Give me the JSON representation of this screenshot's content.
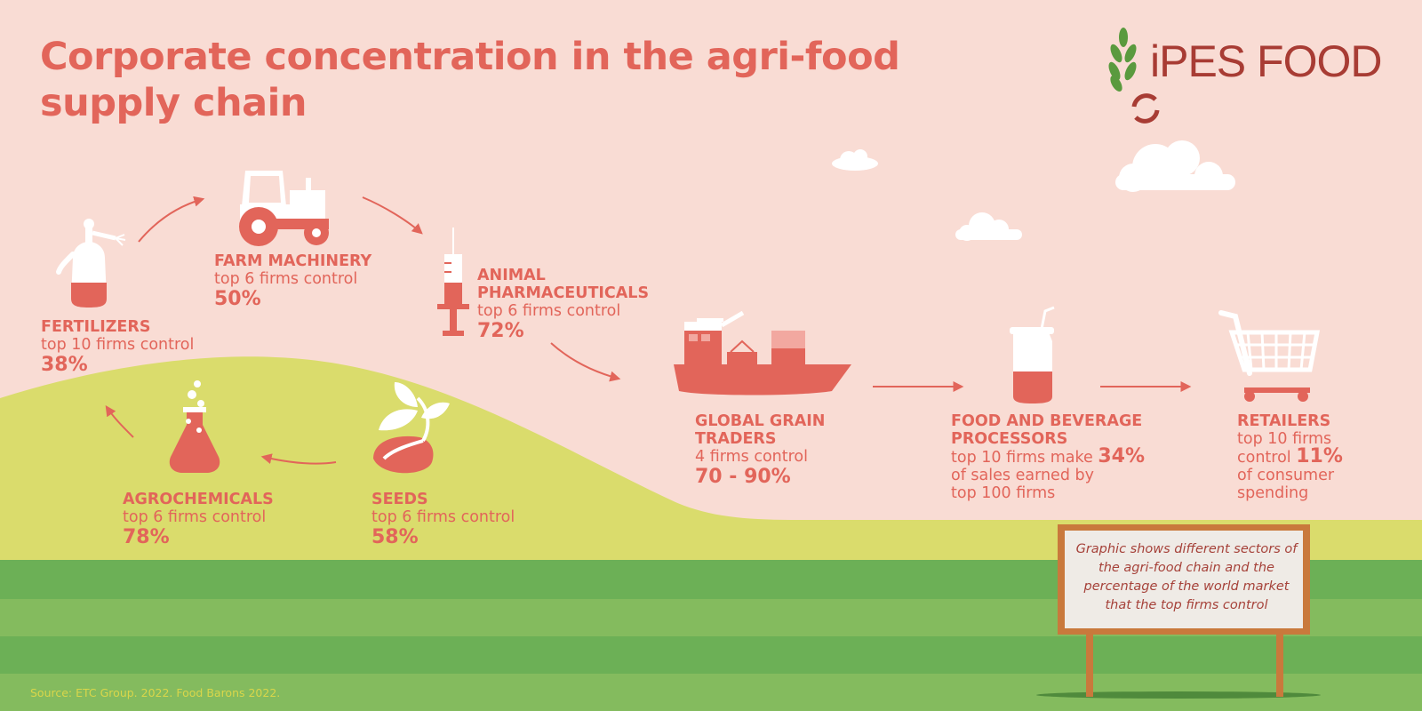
{
  "title": "Corporate concentration in the agri-food supply chain",
  "logo_text": "iPES FOOD",
  "colors": {
    "coral": "#e2655a",
    "background": "#f9dcd4",
    "hill": "#dadc6c",
    "grass_light": "#84bb5e",
    "grass_dark": "#6cb056",
    "sign_frame": "#c9793c"
  },
  "sectors": [
    {
      "name": "FERTILIZERS",
      "desc": "top 10 firms control",
      "value": "38%",
      "icon": "fertilizer-sprayer-icon"
    },
    {
      "name": "FARM MACHINERY",
      "desc": "top 6 firms control",
      "value": "50%",
      "icon": "tractor-icon"
    },
    {
      "name": "ANIMAL",
      "name2": "PHARMACEUTICALS",
      "desc": "top 6 firms control",
      "value": "72%",
      "icon": "syringe-icon"
    },
    {
      "name": "GLOBAL GRAIN",
      "name2": "TRADERS",
      "desc": "4 firms control",
      "value": "70 - 90%",
      "icon": "cargo-ship-icon"
    },
    {
      "name": "FOOD AND BEVERAGE",
      "name2": "PROCESSORS",
      "desc": "top 10 firms make",
      "value": "34%",
      "desc2": "of sales earned by",
      "desc3": "top 100 firms",
      "icon": "beverage-cup-icon"
    },
    {
      "name": "RETAILERS",
      "desc": "top 10 firms",
      "desc_b": "control",
      "value": "11%",
      "desc2": "of consumer",
      "desc3": "spending",
      "icon": "shopping-cart-icon"
    },
    {
      "name": "SEEDS",
      "desc": "top 6 firms control",
      "value": "58%",
      "icon": "seedling-icon"
    },
    {
      "name": "AGROCHEMICALS",
      "desc": "top 6 firms control",
      "value": "78%",
      "icon": "flask-icon"
    }
  ],
  "sign_text": "Graphic shows different sectors of the agri-food chain and the percentage of the world market that the top firms control",
  "source": "Source: ETC Group. 2022. Food Barons 2022."
}
